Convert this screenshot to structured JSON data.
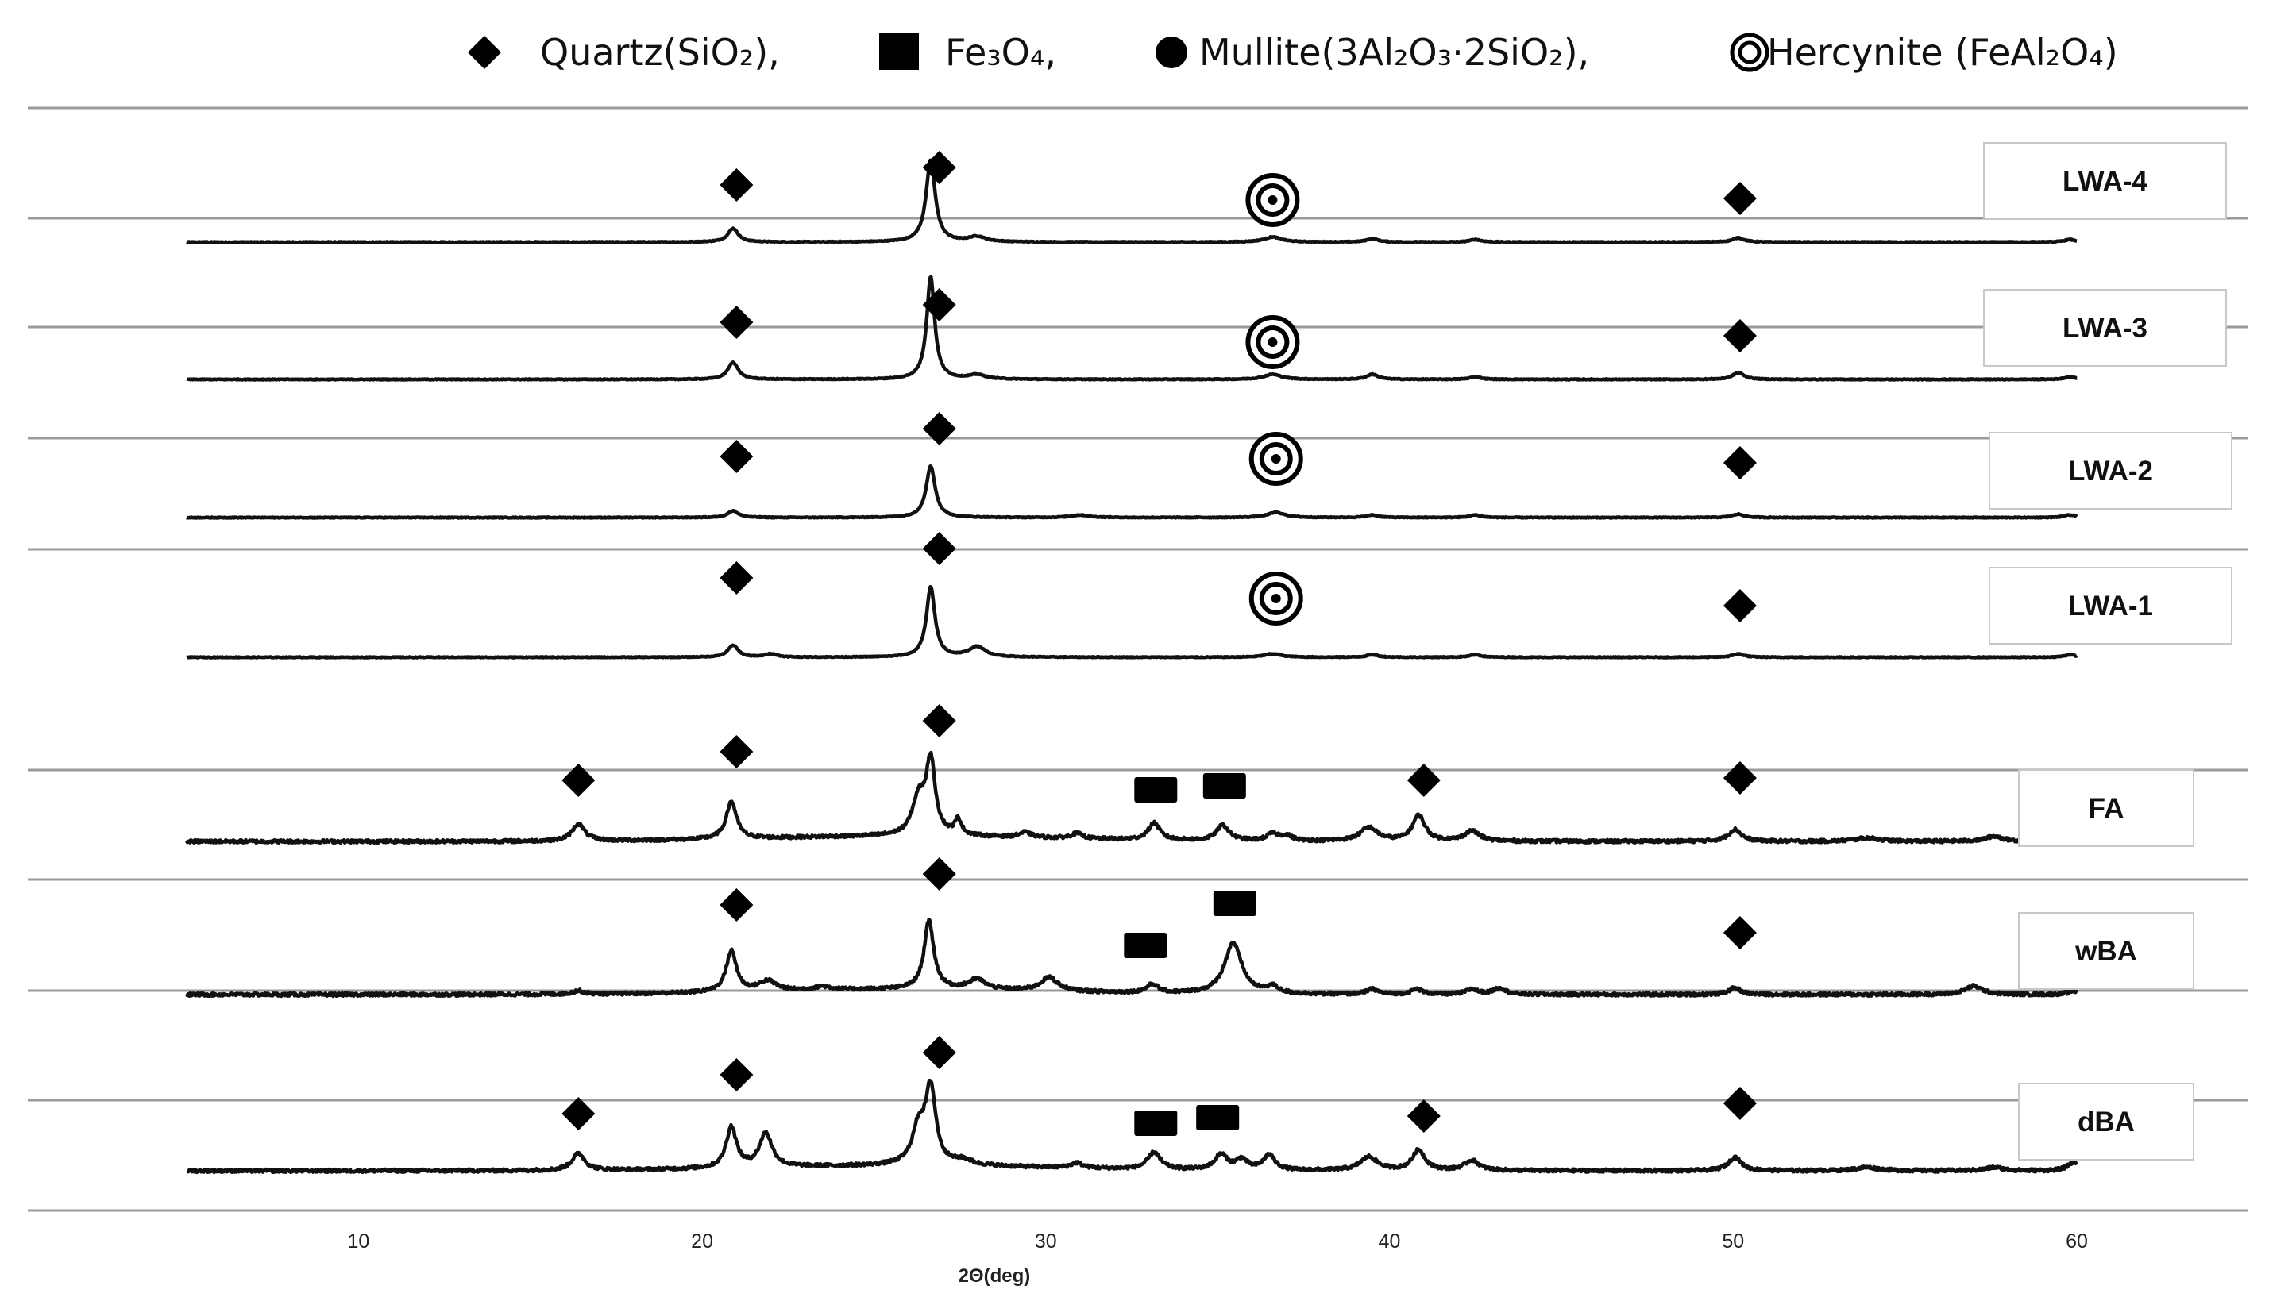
{
  "chart_data": {
    "type": "line",
    "x_label": "2Θ(deg)",
    "xlim": [
      5,
      60
    ],
    "x_ticks": [
      10,
      20,
      30,
      40,
      50,
      60
    ],
    "grid": false,
    "legend_position": "top",
    "legend": [
      {
        "marker": "diamond",
        "label": "Quartz(SiO₂),"
      },
      {
        "marker": "square",
        "label": "Fe₃O₄,"
      },
      {
        "marker": "circle",
        "label": "Mullite(3Al₂O₃·2SiO₂),"
      },
      {
        "marker": "double-circle",
        "label": "Hercynite (FeAl₂O₄)"
      }
    ],
    "series": [
      {
        "name": "LWA-4",
        "noise": 0.25,
        "peaks": [
          [
            20.9,
            8,
            0.18
          ],
          [
            26.65,
            48,
            0.16
          ],
          [
            28.0,
            3,
            0.3
          ],
          [
            36.6,
            3,
            0.3
          ],
          [
            39.5,
            2,
            0.2
          ],
          [
            42.5,
            1.5,
            0.2
          ],
          [
            50.15,
            2.5,
            0.2
          ],
          [
            59.8,
            1.5,
            0.2
          ]
        ],
        "markers": [
          {
            "type": "diamond",
            "x": 21.0,
            "lift": 50
          },
          {
            "type": "diamond",
            "x": 26.9,
            "lift": 72
          },
          {
            "type": "double-circle",
            "x": 36.6,
            "lift": 31
          },
          {
            "type": "diamond",
            "x": 50.2,
            "lift": 33
          }
        ]
      },
      {
        "name": "LWA-3",
        "noise": 0.25,
        "peaks": [
          [
            20.9,
            10,
            0.18
          ],
          [
            26.65,
            60,
            0.14
          ],
          [
            28.0,
            2.5,
            0.3
          ],
          [
            36.6,
            3,
            0.3
          ],
          [
            39.5,
            3,
            0.2
          ],
          [
            42.5,
            1.5,
            0.2
          ],
          [
            50.15,
            4,
            0.2
          ],
          [
            59.8,
            1.5,
            0.2
          ]
        ],
        "markers": [
          {
            "type": "diamond",
            "x": 21.0,
            "lift": 50
          },
          {
            "type": "diamond",
            "x": 26.9,
            "lift": 72
          },
          {
            "type": "double-circle",
            "x": 36.6,
            "lift": 25
          },
          {
            "type": "diamond",
            "x": 50.2,
            "lift": 33
          }
        ]
      },
      {
        "name": "LWA-2",
        "noise": 0.25,
        "peaks": [
          [
            20.9,
            4,
            0.18
          ],
          [
            26.65,
            30,
            0.16
          ],
          [
            31.0,
            1.5,
            0.3
          ],
          [
            36.7,
            3,
            0.3
          ],
          [
            39.5,
            1.5,
            0.2
          ],
          [
            42.5,
            1.5,
            0.2
          ],
          [
            50.15,
            2,
            0.2
          ],
          [
            59.8,
            1.5,
            0.2
          ]
        ],
        "markers": [
          {
            "type": "diamond",
            "x": 21.0,
            "lift": 55
          },
          {
            "type": "diamond",
            "x": 26.9,
            "lift": 90
          },
          {
            "type": "double-circle",
            "x": 36.7,
            "lift": 52
          },
          {
            "type": "diamond",
            "x": 50.2,
            "lift": 47
          }
        ]
      },
      {
        "name": "LWA-1",
        "noise": 0.25,
        "peaks": [
          [
            20.9,
            7,
            0.18
          ],
          [
            22.0,
            2,
            0.2
          ],
          [
            26.65,
            41,
            0.15
          ],
          [
            28.0,
            6,
            0.3
          ],
          [
            36.6,
            2,
            0.3
          ],
          [
            39.5,
            1.5,
            0.2
          ],
          [
            42.5,
            1.5,
            0.2
          ],
          [
            50.15,
            2,
            0.2
          ],
          [
            59.8,
            1.5,
            0.2
          ]
        ],
        "markers": [
          {
            "type": "diamond",
            "x": 21.0,
            "lift": 78
          },
          {
            "type": "diamond",
            "x": 26.9,
            "lift": 115
          },
          {
            "type": "double-circle",
            "x": 36.7,
            "lift": 52
          },
          {
            "type": "diamond",
            "x": 50.2,
            "lift": 43
          }
        ]
      },
      {
        "name": "FA",
        "noise": 0.9,
        "peaks": [
          [
            16.4,
            10,
            0.22
          ],
          [
            20.85,
            22,
            0.18
          ],
          [
            26.3,
            21,
            0.22
          ],
          [
            26.65,
            43,
            0.16
          ],
          [
            27.45,
            9,
            0.12
          ],
          [
            29.4,
            3,
            0.2
          ],
          [
            30.9,
            3,
            0.2
          ],
          [
            33.15,
            10,
            0.2
          ],
          [
            35.15,
            9,
            0.22
          ],
          [
            36.6,
            4,
            0.2
          ],
          [
            37.0,
            3,
            0.2
          ],
          [
            39.4,
            8,
            0.3
          ],
          [
            40.85,
            15,
            0.22
          ],
          [
            42.4,
            6,
            0.25
          ],
          [
            50.05,
            7,
            0.22
          ],
          [
            53.9,
            2,
            0.4
          ],
          [
            57.6,
            3,
            0.3
          ],
          [
            59.9,
            4,
            0.2
          ]
        ],
        "markers": [
          {
            "type": "diamond",
            "x": 16.4,
            "lift": 55
          },
          {
            "type": "diamond",
            "x": 21.0,
            "lift": 91
          },
          {
            "type": "diamond",
            "x": 26.9,
            "lift": 130
          },
          {
            "type": "square",
            "x": 33.2,
            "lift": 43
          },
          {
            "type": "square",
            "x": 35.2,
            "lift": 48
          },
          {
            "type": "diamond",
            "x": 41.0,
            "lift": 55
          },
          {
            "type": "diamond",
            "x": 50.2,
            "lift": 58
          }
        ]
      },
      {
        "name": "wBA",
        "noise": 0.9,
        "peaks": [
          [
            16.4,
            2,
            0.2
          ],
          [
            20.85,
            24,
            0.18
          ],
          [
            21.9,
            6,
            0.3
          ],
          [
            23.5,
            2,
            0.3
          ],
          [
            26.6,
            40,
            0.17
          ],
          [
            28.0,
            6,
            0.3
          ],
          [
            30.1,
            8,
            0.3
          ],
          [
            33.1,
            5,
            0.2
          ],
          [
            35.45,
            30,
            0.3
          ],
          [
            36.6,
            4,
            0.2
          ],
          [
            39.5,
            3,
            0.2
          ],
          [
            40.8,
            3,
            0.2
          ],
          [
            42.4,
            3,
            0.2
          ],
          [
            43.2,
            4,
            0.2
          ],
          [
            50.05,
            4,
            0.2
          ],
          [
            57.0,
            5,
            0.3
          ],
          [
            59.9,
            2,
            0.2
          ]
        ],
        "markers": [
          {
            "type": "diamond",
            "x": 21.0,
            "lift": 91
          },
          {
            "type": "diamond",
            "x": 26.9,
            "lift": 130
          },
          {
            "type": "square",
            "x": 32.9,
            "lift": 40
          },
          {
            "type": "square",
            "x": 35.5,
            "lift": 93
          },
          {
            "type": "diamond",
            "x": 50.2,
            "lift": 56
          }
        ]
      },
      {
        "name": "dBA",
        "noise": 0.9,
        "peaks": [
          [
            16.4,
            10,
            0.22
          ],
          [
            20.85,
            24,
            0.18
          ],
          [
            21.85,
            20,
            0.22
          ],
          [
            26.3,
            21,
            0.22
          ],
          [
            26.65,
            44,
            0.18
          ],
          [
            27.6,
            3,
            0.3
          ],
          [
            30.9,
            3,
            0.2
          ],
          [
            33.15,
            10,
            0.22
          ],
          [
            35.1,
            9,
            0.22
          ],
          [
            35.7,
            6,
            0.2
          ],
          [
            36.5,
            9,
            0.2
          ],
          [
            39.4,
            8,
            0.3
          ],
          [
            40.85,
            12,
            0.22
          ],
          [
            42.4,
            6,
            0.25
          ],
          [
            50.05,
            8,
            0.22
          ],
          [
            53.9,
            2,
            0.4
          ],
          [
            57.6,
            2,
            0.3
          ],
          [
            59.9,
            5,
            0.2
          ]
        ],
        "markers": [
          {
            "type": "diamond",
            "x": 16.4,
            "lift": 50
          },
          {
            "type": "diamond",
            "x": 21.0,
            "lift": 99
          },
          {
            "type": "diamond",
            "x": 26.9,
            "lift": 127
          },
          {
            "type": "square",
            "x": 33.2,
            "lift": 38
          },
          {
            "type": "square",
            "x": 35.0,
            "lift": 45
          },
          {
            "type": "diamond",
            "x": 41.0,
            "lift": 47
          },
          {
            "type": "diamond",
            "x": 50.2,
            "lift": 63
          }
        ]
      }
    ]
  }
}
